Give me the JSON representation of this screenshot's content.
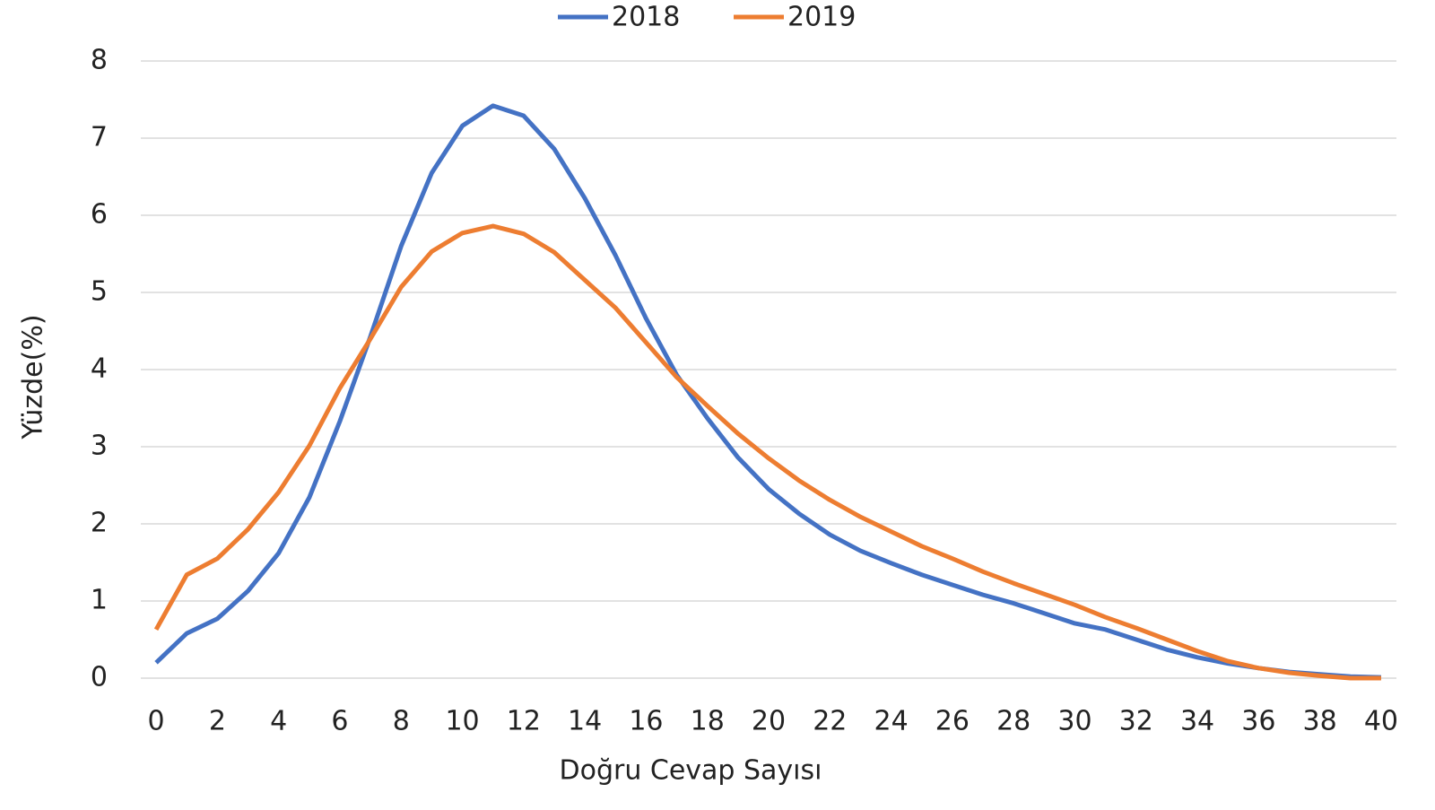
{
  "chart_data": {
    "type": "line",
    "x_label": "Doğru Cevap Sayısı",
    "y_label": "Yüzde(%)",
    "x": [
      0,
      1,
      2,
      3,
      4,
      5,
      6,
      7,
      8,
      9,
      10,
      11,
      12,
      13,
      14,
      15,
      16,
      17,
      18,
      19,
      20,
      21,
      22,
      23,
      24,
      25,
      26,
      27,
      28,
      29,
      30,
      31,
      32,
      33,
      34,
      35,
      36,
      37,
      38,
      39,
      40
    ],
    "series": [
      {
        "name": "2018",
        "color": "#4472c4",
        "values": [
          0.2,
          0.58,
          0.77,
          1.13,
          1.62,
          2.34,
          3.33,
          4.43,
          5.6,
          6.55,
          7.16,
          7.42,
          7.29,
          6.86,
          6.22,
          5.48,
          4.66,
          3.93,
          3.37,
          2.86,
          2.45,
          2.13,
          1.86,
          1.65,
          1.49,
          1.34,
          1.21,
          1.08,
          0.97,
          0.84,
          0.71,
          0.63,
          0.5,
          0.37,
          0.27,
          0.19,
          0.13,
          0.08,
          0.05,
          0.02,
          0.01
        ]
      },
      {
        "name": "2019",
        "color": "#ed7d31",
        "values": [
          0.63,
          1.34,
          1.55,
          1.93,
          2.41,
          3.01,
          3.76,
          4.4,
          5.07,
          5.53,
          5.77,
          5.86,
          5.76,
          5.52,
          5.16,
          4.8,
          4.35,
          3.9,
          3.53,
          3.17,
          2.85,
          2.56,
          2.31,
          2.09,
          1.9,
          1.71,
          1.55,
          1.38,
          1.23,
          1.09,
          0.95,
          0.79,
          0.65,
          0.5,
          0.35,
          0.22,
          0.13,
          0.07,
          0.03,
          0,
          0
        ]
      }
    ],
    "xlim": [
      -0.5,
      40.5
    ],
    "xticks": [
      0,
      2,
      4,
      6,
      8,
      10,
      12,
      14,
      16,
      18,
      20,
      22,
      24,
      26,
      28,
      30,
      32,
      34,
      36,
      38,
      40
    ],
    "ylim": [
      0,
      8
    ],
    "yticks": [
      0,
      1,
      2,
      3,
      4,
      5,
      6,
      7,
      8
    ],
    "grid": true,
    "legend": "top"
  }
}
